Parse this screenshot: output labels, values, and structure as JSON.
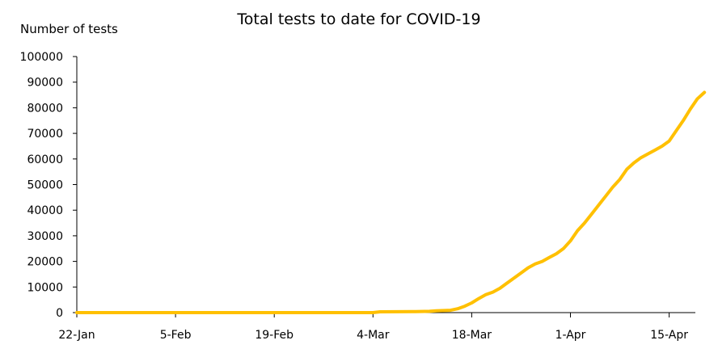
{
  "chart_data": {
    "type": "line",
    "title": "Total tests to date for COVID-19",
    "xlabel": "",
    "ylabel": "Number of tests",
    "x_start": "2020-01-22",
    "x_end": "2020-04-19",
    "xlim": [
      "2020-01-22",
      "2020-04-19"
    ],
    "ylim": [
      0,
      100000
    ],
    "y_ticks": [
      0,
      10000,
      20000,
      30000,
      40000,
      50000,
      60000,
      70000,
      80000,
      90000,
      100000
    ],
    "x_ticks": [
      {
        "label": "22-Jan",
        "date": "2020-01-22"
      },
      {
        "label": "5-Feb",
        "date": "2020-02-05"
      },
      {
        "label": "19-Feb",
        "date": "2020-02-19"
      },
      {
        "label": "4-Mar",
        "date": "2020-03-04"
      },
      {
        "label": "18-Mar",
        "date": "2020-03-18"
      },
      {
        "label": "1-Apr",
        "date": "2020-04-01"
      },
      {
        "label": "15-Apr",
        "date": "2020-04-15"
      }
    ],
    "grid": false,
    "legend": "none",
    "series": [
      {
        "color": "#FFC000",
        "points": [
          [
            "2020-01-22",
            0
          ],
          [
            "2020-03-04",
            0
          ],
          [
            "2020-03-05",
            300
          ],
          [
            "2020-03-10",
            400
          ],
          [
            "2020-03-12",
            500
          ],
          [
            "2020-03-13",
            700
          ],
          [
            "2020-03-15",
            900
          ],
          [
            "2020-03-16",
            1500
          ],
          [
            "2020-03-17",
            2500
          ],
          [
            "2020-03-18",
            3800
          ],
          [
            "2020-03-19",
            5500
          ],
          [
            "2020-03-20",
            7000
          ],
          [
            "2020-03-21",
            8000
          ],
          [
            "2020-03-22",
            9500
          ],
          [
            "2020-03-23",
            11500
          ],
          [
            "2020-03-24",
            13500
          ],
          [
            "2020-03-25",
            15500
          ],
          [
            "2020-03-26",
            17500
          ],
          [
            "2020-03-27",
            19000
          ],
          [
            "2020-03-28",
            20000
          ],
          [
            "2020-03-29",
            21500
          ],
          [
            "2020-03-30",
            23000
          ],
          [
            "2020-03-31",
            25000
          ],
          [
            "2020-04-01",
            28000
          ],
          [
            "2020-04-02",
            32000
          ],
          [
            "2020-04-03",
            35000
          ],
          [
            "2020-04-04",
            38500
          ],
          [
            "2020-04-05",
            42000
          ],
          [
            "2020-04-06",
            45500
          ],
          [
            "2020-04-07",
            49000
          ],
          [
            "2020-04-08",
            52000
          ],
          [
            "2020-04-09",
            56000
          ],
          [
            "2020-04-10",
            58500
          ],
          [
            "2020-04-11",
            60500
          ],
          [
            "2020-04-12",
            62000
          ],
          [
            "2020-04-13",
            63500
          ],
          [
            "2020-04-14",
            65000
          ],
          [
            "2020-04-15",
            67000
          ],
          [
            "2020-04-16",
            71000
          ],
          [
            "2020-04-17",
            75000
          ],
          [
            "2020-04-18",
            79500
          ],
          [
            "2020-04-19",
            83500
          ],
          [
            "2020-04-20",
            86000
          ]
        ]
      }
    ]
  }
}
